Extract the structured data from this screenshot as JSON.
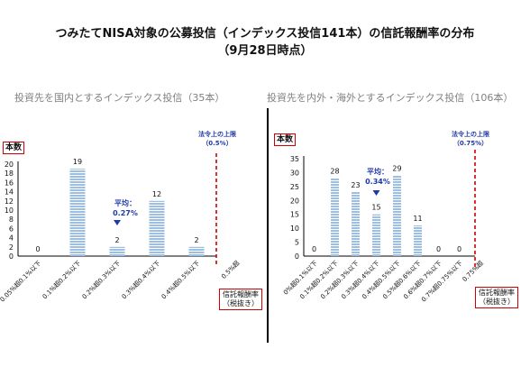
{
  "title_line1": "つみたてNISA対象の公募投信（インデックス投信141本）の信託報酬率の分布",
  "title_line2": "（9月28日時点）",
  "chart_data": [
    {
      "type": "bar",
      "subtitle": "投資先を国内とするインデックス投信（35本）",
      "ylabel": "本数",
      "xlabel": "信託報酬率（税抜き）",
      "xlabel_line1": "信託報酬率",
      "xlabel_line2": "（税抜き）",
      "categories": [
        "0.05%超0.1%以下",
        "0.1%超0.2%以下",
        "0.2%超0.3%以下",
        "0.3%超0.4%以下",
        "0.4%超0.5%以下"
      ],
      "values": [
        0,
        19,
        2,
        12,
        2
      ],
      "data_labels": [
        "0",
        "19",
        "2",
        "12",
        "2"
      ],
      "ylim": [
        0,
        20
      ],
      "yticks": [
        "0",
        "2",
        "4",
        "6",
        "8",
        "10",
        "12",
        "14",
        "16",
        "18",
        "20"
      ],
      "limit_tick_label": "0.5%超",
      "legal_limit_line1": "法令上の上限",
      "legal_limit_line2": "（0.5%）",
      "average_label": "平均：",
      "average_value": "0.27%",
      "average_marker_category": 2,
      "bar_color": "#9dbfe3"
    },
    {
      "type": "bar",
      "subtitle": "投資先を内外・海外とするインデックス投信（106本）",
      "ylabel": "本数",
      "xlabel": "信託報酬率（税抜き）",
      "xlabel_line1": "信託報酬率",
      "xlabel_line2": "（税抜き）",
      "categories": [
        "0%超0.1%以下",
        "0.1%超0.2%以下",
        "0.2%超0.3%以下",
        "0.3%超0.4%以下",
        "0.4%超0.5%以下",
        "0.5%超0.6%以下",
        "0.6%超0.7%以下",
        "0.7%超0.75%以下"
      ],
      "values": [
        0,
        28,
        23,
        15,
        29,
        11,
        0,
        0
      ],
      "data_labels": [
        "0",
        "28",
        "23",
        "15",
        "29",
        "11",
        "0",
        "0"
      ],
      "ylim": [
        0,
        35
      ],
      "yticks": [
        "0",
        "5",
        "10",
        "15",
        "20",
        "25",
        "30",
        "35"
      ],
      "limit_tick_label": "0.75%超",
      "legal_limit_line1": "法令上の上限",
      "legal_limit_line2": "（0.75%）",
      "average_label": "平均：",
      "average_value": "0.34%",
      "average_marker_category": 3,
      "bar_color": "#9dbfe3"
    }
  ],
  "colors": {
    "legal_limit": "#d00000",
    "average": "#1f3aa8",
    "axis": "#000000"
  }
}
